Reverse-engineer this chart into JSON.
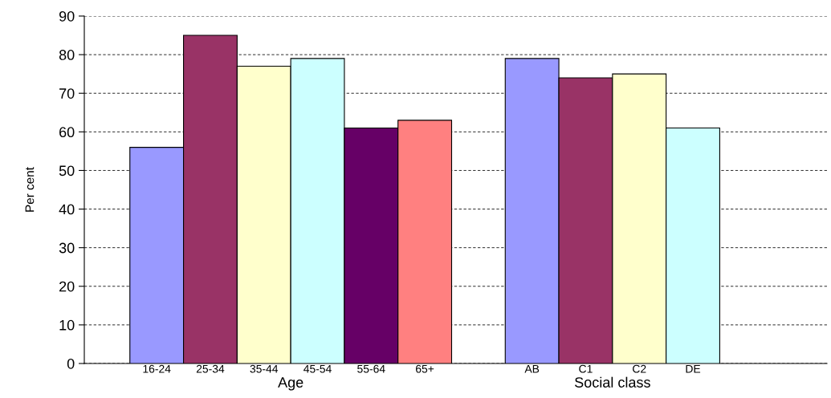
{
  "chart_data": {
    "type": "bar",
    "ylabel": "Per cent",
    "categories": [
      "16-24",
      "25-34",
      "35-44",
      "45-54",
      "55-64",
      "65+",
      null,
      "AB",
      "C1",
      "C2",
      "DE",
      null,
      null
    ],
    "values": [
      56,
      85,
      77,
      79,
      61,
      63,
      null,
      79,
      74,
      75,
      61,
      null,
      null
    ],
    "colors": [
      "#9999ff",
      "#993366",
      "#ffffcc",
      "#ccffff",
      "#660066",
      "#ff8080",
      "#ffffff",
      "#9999ff",
      "#993366",
      "#ffffcc",
      "#ccffff",
      "#ffffff",
      "#ffffff"
    ],
    "annotations": [
      "Age",
      "Social class"
    ],
    "ylim": [
      0,
      90
    ],
    "yticks": [
      0,
      10,
      20,
      30,
      40,
      50,
      60,
      70,
      80,
      90
    ],
    "grid": "y"
  }
}
